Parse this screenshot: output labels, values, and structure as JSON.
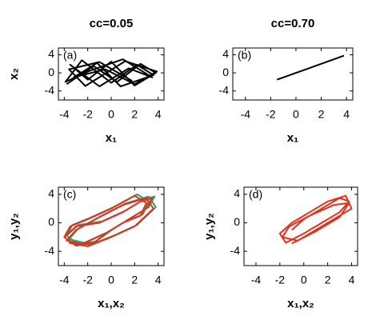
{
  "chart_data": [
    {
      "type": "line",
      "title": "cc=0.05",
      "annotation": "(a)",
      "xlabel": "x₁",
      "ylabel": "x₂",
      "xlim": [
        -4.5,
        4.5
      ],
      "ylim": [
        -6,
        5.5
      ],
      "xticks": [
        -4,
        -2,
        0,
        2,
        4
      ],
      "yticks": [
        -4,
        0,
        4
      ],
      "series": [
        {
          "color": "#000000",
          "x": [
            -3.8,
            -1.5,
            0.5,
            2.5,
            3.8,
            2,
            0,
            -2,
            -3.5,
            -1,
            1.5,
            3.5,
            1,
            -1.8,
            -3.9,
            -2.5,
            0,
            2.2,
            3.6,
            0.8,
            -1.2,
            -3.2,
            -0.5,
            2,
            3.9,
            1.2,
            -2.2,
            -3.6,
            -1,
            1.8
          ],
          "values": [
            -2.5,
            1.5,
            -2,
            2,
            0,
            -2.8,
            2.5,
            -1.5,
            1.8,
            -3,
            1,
            -1,
            3,
            0.5,
            -2,
            2.8,
            -2.2,
            1.8,
            -0.5,
            -3,
            2.2,
            -1,
            0.8,
            -2.5,
            0.3,
            2.6,
            -2.9,
            0.8,
            2.4,
            -1.8
          ]
        }
      ]
    },
    {
      "type": "line",
      "title": "cc=0.70",
      "annotation": "(b)",
      "xlabel": "x₁",
      "xlim": [
        -5,
        4.5
      ],
      "ylim": [
        -6,
        5.5
      ],
      "xticks": [
        -4,
        -2,
        0,
        2,
        4
      ],
      "yticks": [
        -4,
        0,
        4
      ],
      "series": [
        {
          "color": "#000000",
          "x": [
            -1.5,
            3.8
          ],
          "values": [
            -1.5,
            3.8
          ]
        }
      ]
    },
    {
      "type": "line",
      "annotation": "(c)",
      "xlabel": "x₁,x₂",
      "ylabel": "y₁,y₂",
      "xlim": [
        -4.5,
        4.5
      ],
      "ylim": [
        -6,
        5
      ],
      "xticks": [
        -4,
        -2,
        0,
        2,
        4
      ],
      "yticks": [
        -4,
        0,
        4
      ],
      "series": [
        {
          "color": "#2a9d6e",
          "x": [
            -3.8,
            -2.8,
            -0.8,
            1.2,
            2.7,
            3.7,
            3.2,
            1.7,
            0.2,
            -1.3,
            -2.8,
            -3.8,
            -3.3,
            -1.8,
            0.2,
            2.2,
            3.2,
            2.7,
            1.2,
            -0.3,
            -2.3,
            -3.6,
            -2.8,
            -0.8,
            1.2,
            3.2,
            3.8,
            2.2,
            0.2,
            -1.8,
            -3.4
          ],
          "values": [
            -1.8,
            -0.3,
            0.2,
            1.7,
            3.2,
            3.7,
            2.2,
            0.7,
            -0.8,
            -2.6,
            -3,
            -1.8,
            -0.3,
            0.7,
            2.2,
            4,
            3,
            1.2,
            0.2,
            -1.3,
            -2.8,
            -2.3,
            -0.8,
            1,
            2.7,
            3.7,
            2.2,
            -0.3,
            -1.8,
            -3.1,
            -2.6
          ]
        },
        {
          "color": "#e3301c",
          "x": [
            -4,
            -3,
            -1,
            1,
            2.5,
            3.5,
            3,
            1.5,
            0,
            -1.5,
            -3,
            -4,
            -3.5,
            -2,
            0,
            2,
            3,
            2.5,
            1,
            -0.5,
            -2.5,
            -3.8,
            -3,
            -1,
            1,
            3,
            3.6,
            2,
            0,
            -2,
            -3.6
          ],
          "values": [
            -2,
            -0.5,
            0,
            1.5,
            3,
            3.5,
            2,
            0.5,
            -1,
            -2.8,
            -3.2,
            -2,
            -0.5,
            0.5,
            2,
            3.8,
            2.8,
            1,
            0,
            -1.5,
            -3,
            -2.5,
            -1,
            0.8,
            2.5,
            3.5,
            2,
            -0.5,
            -2,
            -3.3,
            -2.8
          ]
        }
      ]
    },
    {
      "type": "line",
      "annotation": "(d)",
      "xlabel": "x₁,x₂",
      "ylabel": "y₁,y₂",
      "xlim": [
        -5,
        4.5
      ],
      "ylim": [
        -6,
        5
      ],
      "xticks": [
        -4,
        -2,
        0,
        2,
        4
      ],
      "yticks": [
        -4,
        0,
        4
      ],
      "series": [
        {
          "color": "#e3301c",
          "x": [
            -1,
            0,
            1.5,
            3,
            3.8,
            3,
            1.5,
            0,
            -1.5,
            -2,
            -1,
            0.5,
            2,
            3.5,
            4,
            2.5,
            1,
            -0.5,
            -1.8,
            -1.2,
            0.5,
            2.5,
            3.8,
            3,
            1,
            -1
          ],
          "values": [
            -1,
            0.5,
            2,
            3.5,
            3,
            1.5,
            0,
            -1.5,
            -2.8,
            -1.5,
            0,
            1.5,
            3,
            3.8,
            2,
            0.5,
            -1,
            -2.5,
            -2,
            -0.5,
            1,
            2.5,
            2.8,
            0.8,
            -1.2,
            -2.9
          ]
        }
      ]
    }
  ]
}
